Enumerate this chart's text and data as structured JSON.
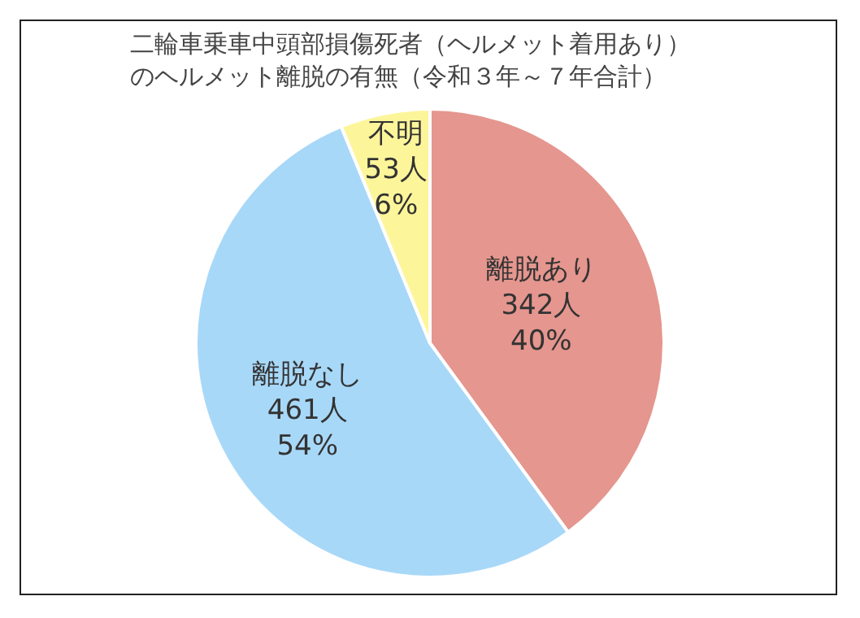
{
  "chart_data": {
    "type": "pie",
    "title": "二輪車乗車中頭部損傷死者（ヘルメット着用あり）のヘルメット離脱の有無（令和３年～７年合計）",
    "categories": [
      "離脱あり",
      "離脱なし",
      "不明"
    ],
    "values": [
      342,
      461,
      53
    ],
    "colors": [
      "#e5968e",
      "#a8d8f8",
      "#fdf59a"
    ],
    "value_labels": [
      "342人\n40%",
      "461人\n54%",
      "53人\n6%"
    ],
    "legend": false
  }
}
